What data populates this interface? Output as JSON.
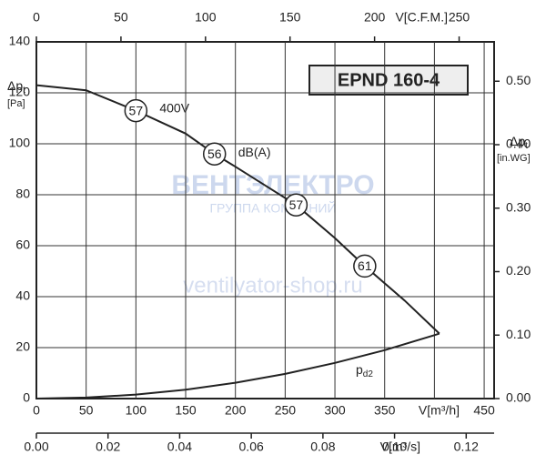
{
  "chart_data": {
    "type": "line",
    "title": "EPND 160-4",
    "xlabel": "V[m³/h]",
    "x2label": "V[C.F.M.]",
    "x3label": "V[m³/s]",
    "ylabel": "Δp",
    "ylabel_sub": "t",
    "ylabel_unit": "[Pa]",
    "y2label": "Δp",
    "y2label_sub": "t",
    "y2label_unit": "[in.WG]",
    "xlim": [
      0,
      460
    ],
    "xticks": [
      0,
      50,
      100,
      150,
      200,
      250,
      300,
      350,
      {
        "value": 400,
        "label": null
      },
      450
    ],
    "x2lim": [
      0,
      270.7
    ],
    "x2ticks": [
      0,
      50,
      100,
      150,
      200,
      250
    ],
    "x3lim": [
      0,
      0.1278
    ],
    "x3ticks": [
      {
        "value": 0,
        "label": "0.00"
      },
      {
        "value": 0.02,
        "label": "0.02"
      },
      {
        "value": 0.04,
        "label": "0.04"
      },
      {
        "value": 0.06,
        "label": "0.06"
      },
      {
        "value": 0.08,
        "label": "0.08"
      },
      {
        "value": 0.1,
        "label": "0.10"
      },
      {
        "value": 0.12,
        "label": "0.12"
      }
    ],
    "ylim": [
      0,
      140
    ],
    "yticks": [
      0,
      20,
      40,
      60,
      80,
      100,
      120,
      140
    ],
    "y2lim": [
      0,
      0.562
    ],
    "y2ticks": [
      {
        "value": 0,
        "label": "0.00"
      },
      {
        "value": 0.1,
        "label": "0.10"
      },
      {
        "value": 0.2,
        "label": "0.20"
      },
      {
        "value": 0.3,
        "label": "0.30"
      },
      {
        "value": 0.4,
        "label": "0.40"
      },
      {
        "value": 0.5,
        "label": "0.50"
      }
    ],
    "grid": true,
    "series": [
      {
        "name": "400V",
        "color": "#222222",
        "x": [
          0,
          50,
          100,
          150,
          179,
          200,
          261,
          300,
          330,
          370,
          405
        ],
        "values": [
          123,
          121,
          113,
          104,
          96,
          91,
          76,
          63,
          52,
          38.5,
          25.5
        ]
      },
      {
        "name": "p",
        "name_sub": "d2",
        "color": "#222222",
        "x": [
          0,
          50,
          100,
          150,
          200,
          250,
          300,
          350,
          400,
          405
        ],
        "values": [
          0,
          0.39,
          1.55,
          3.5,
          6.2,
          9.7,
          14.0,
          19.0,
          24.9,
          25.5
        ]
      }
    ],
    "markers_label": "dB(A)",
    "markers": [
      {
        "x": 100,
        "y": 113,
        "value": 57
      },
      {
        "x": 179,
        "y": 96,
        "value": 56
      },
      {
        "x": 261,
        "y": 76,
        "value": 57
      },
      {
        "x": 330,
        "y": 52,
        "value": 61
      }
    ],
    "watermark": [
      "ВЕНТЭЛЕКТРО",
      "ГРУППА КОМПАНИЙ",
      "ventilyator-shop.ru"
    ]
  }
}
